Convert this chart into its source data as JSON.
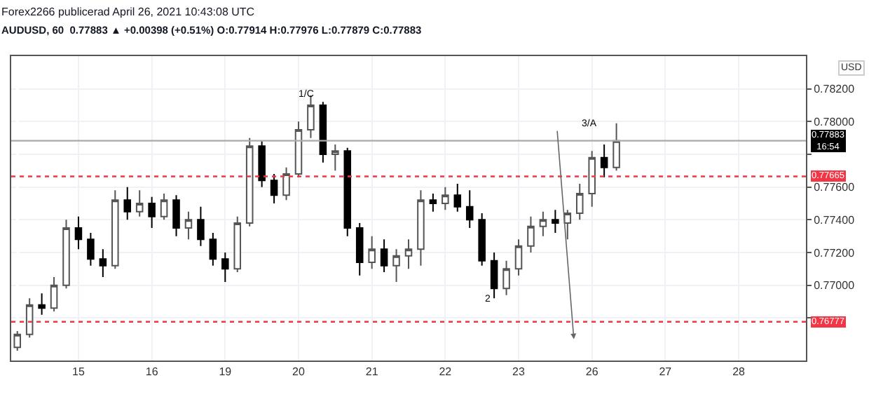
{
  "chart_data": {
    "type": "candlestick",
    "title": "Forex2266 publicerad April 26, 2021 10:43:08 UTC",
    "subtitle": "AUDUSD, 60  0.77883 ▲ +0.00398 (+0.51%) O:0.77914 H:0.77976 L:0.77879 C:0.77883",
    "ylabel": "USD",
    "categories": [
      null,
      null,
      null,
      null,
      null,
      "15",
      null,
      null,
      null,
      null,
      null,
      "16",
      null,
      null,
      null,
      null,
      null,
      "19",
      null,
      null,
      null,
      null,
      null,
      "20",
      null,
      null,
      null,
      null,
      null,
      "21",
      null,
      null,
      null,
      null,
      null,
      "22",
      null,
      null,
      null,
      null,
      null,
      "23",
      null,
      null,
      null,
      null,
      null,
      "26",
      null,
      null,
      null,
      null,
      null,
      "27",
      null,
      null,
      null,
      null,
      null,
      "28",
      null,
      null,
      null,
      null,
      null
    ],
    "ohlc": [
      [
        0.7662,
        0.7672,
        0.766,
        0.767
      ],
      [
        0.767,
        0.7692,
        0.7668,
        0.7688
      ],
      [
        0.7688,
        0.7695,
        0.7682,
        0.7686
      ],
      [
        0.7686,
        0.7705,
        0.7684,
        0.77
      ],
      [
        0.77,
        0.774,
        0.7698,
        0.7735
      ],
      [
        0.7735,
        0.7742,
        0.7722,
        0.7728
      ],
      [
        0.7728,
        0.7732,
        0.7712,
        0.7716
      ],
      [
        0.7716,
        0.7722,
        0.7705,
        0.7712
      ],
      [
        0.7712,
        0.7758,
        0.771,
        0.7752
      ],
      [
        0.7752,
        0.776,
        0.774,
        0.7745
      ],
      [
        0.7745,
        0.7758,
        0.7742,
        0.775
      ],
      [
        0.775,
        0.7754,
        0.7735,
        0.7742
      ],
      [
        0.7742,
        0.7756,
        0.774,
        0.7752
      ],
      [
        0.7752,
        0.7755,
        0.773,
        0.7735
      ],
      [
        0.7735,
        0.7745,
        0.7728,
        0.774
      ],
      [
        0.774,
        0.7748,
        0.7724,
        0.7728
      ],
      [
        0.7728,
        0.7732,
        0.7712,
        0.7716
      ],
      [
        0.7716,
        0.772,
        0.7702,
        0.771
      ],
      [
        0.771,
        0.7742,
        0.7708,
        0.7738
      ],
      [
        0.7738,
        0.779,
        0.7736,
        0.7785
      ],
      [
        0.7785,
        0.7788,
        0.776,
        0.7764
      ],
      [
        0.7764,
        0.7768,
        0.775,
        0.7755
      ],
      [
        0.7755,
        0.7772,
        0.7752,
        0.7768
      ],
      [
        0.7768,
        0.78,
        0.7766,
        0.7795
      ],
      [
        0.7795,
        0.7816,
        0.779,
        0.781
      ],
      [
        0.781,
        0.7812,
        0.7775,
        0.778
      ],
      [
        0.778,
        0.7786,
        0.777,
        0.7782
      ],
      [
        0.7782,
        0.7784,
        0.773,
        0.7735
      ],
      [
        0.7735,
        0.7738,
        0.7706,
        0.7714
      ],
      [
        0.7714,
        0.773,
        0.771,
        0.7722
      ],
      [
        0.7722,
        0.7728,
        0.7708,
        0.7712
      ],
      [
        0.7712,
        0.7722,
        0.7702,
        0.7718
      ],
      [
        0.7718,
        0.7728,
        0.771,
        0.7722
      ],
      [
        0.7722,
        0.7758,
        0.7712,
        0.7752
      ],
      [
        0.7752,
        0.7756,
        0.7745,
        0.775
      ],
      [
        0.775,
        0.776,
        0.7746,
        0.7755
      ],
      [
        0.7755,
        0.7762,
        0.7745,
        0.7748
      ],
      [
        0.7748,
        0.7758,
        0.7735,
        0.774
      ],
      [
        0.774,
        0.7744,
        0.7712,
        0.7715
      ],
      [
        0.7715,
        0.772,
        0.7692,
        0.7698
      ],
      [
        0.7698,
        0.7715,
        0.7694,
        0.771
      ],
      [
        0.771,
        0.7728,
        0.7706,
        0.7724
      ],
      [
        0.7724,
        0.7742,
        0.772,
        0.7736
      ],
      [
        0.7736,
        0.7745,
        0.773,
        0.774
      ],
      [
        0.774,
        0.7746,
        0.7732,
        0.7738
      ],
      [
        0.7738,
        0.7746,
        0.7728,
        0.7744
      ],
      [
        0.7744,
        0.7762,
        0.774,
        0.7756
      ],
      [
        0.7756,
        0.7782,
        0.7748,
        0.7778
      ],
      [
        0.7778,
        0.7786,
        0.7766,
        0.7772
      ],
      [
        0.7772,
        0.7799,
        0.777,
        0.77883
      ],
      null,
      null,
      null,
      null,
      null,
      null,
      null,
      null,
      null,
      null,
      null,
      null,
      null,
      null,
      null
    ],
    "ylim": [
      0.7654,
      0.784
    ],
    "yticks": [
      {
        "value": 0.768,
        "label": null
      },
      {
        "value": 0.77,
        "label": "0.77000"
      },
      {
        "value": 0.772,
        "label": "0.77200"
      },
      {
        "value": 0.774,
        "label": "0.77400"
      },
      {
        "value": 0.776,
        "label": "0.77600"
      },
      {
        "value": 0.778,
        "label": null
      },
      {
        "value": 0.78,
        "label": "0.78000"
      },
      {
        "value": 0.782,
        "label": "0.78200"
      }
    ],
    "ref_lines": [
      {
        "axis": "y",
        "value": 0.77665,
        "label": "0.77665",
        "color": "#f23645",
        "line_style": "dotted"
      },
      {
        "axis": "y",
        "value": 0.76777,
        "label": "0.76777",
        "color": "#f23645",
        "line_style": "dotted"
      },
      {
        "axis": "y",
        "value": 0.77883,
        "label": "0.77883\n16:54",
        "color": "#aaaaaa",
        "line_style": "solid"
      }
    ],
    "annotations": [
      "1/C",
      "2",
      "3/A"
    ],
    "grid": true,
    "legend": false
  }
}
